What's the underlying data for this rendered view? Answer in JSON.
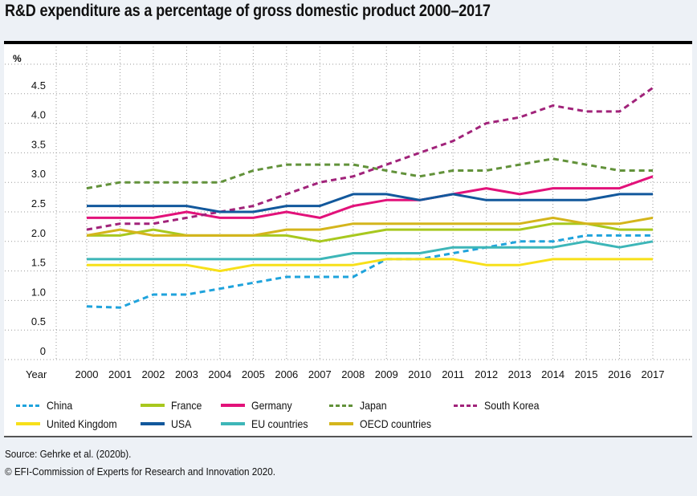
{
  "title": "R&D expenditure as a percentage of gross domestic product 2000–2017",
  "chart_data": {
    "type": "line",
    "title": "R&D expenditure as a percentage of gross domestic product 2000–2017",
    "ylabel": "%",
    "xlabel": "Year",
    "ylim": [
      0,
      5.0
    ],
    "yticks": [
      "0",
      "0.5",
      "1.0",
      "1.5",
      "2.0",
      "2.5",
      "3.0",
      "3.5",
      "4.0",
      "4.5"
    ],
    "grid": true,
    "legend_position": "bottom",
    "x": [
      "2000",
      "2001",
      "2002",
      "2003",
      "2004",
      "2005",
      "2006",
      "2007",
      "2008",
      "2009",
      "2010",
      "2011",
      "2012",
      "2013",
      "2014",
      "2015",
      "2016",
      "2017"
    ],
    "series": [
      {
        "name": "China",
        "color": "#1fa3dc",
        "dashed": true,
        "values": [
          0.9,
          0.88,
          1.1,
          1.1,
          1.2,
          1.3,
          1.4,
          1.4,
          1.4,
          1.7,
          1.7,
          1.8,
          1.9,
          2.0,
          2.0,
          2.1,
          2.1,
          2.1
        ]
      },
      {
        "name": "France",
        "color": "#a8c81e",
        "dashed": false,
        "values": [
          2.1,
          2.1,
          2.2,
          2.1,
          2.1,
          2.1,
          2.1,
          2.0,
          2.1,
          2.2,
          2.2,
          2.2,
          2.2,
          2.2,
          2.3,
          2.3,
          2.2,
          2.2
        ]
      },
      {
        "name": "Germany",
        "color": "#e2127a",
        "dashed": false,
        "values": [
          2.4,
          2.4,
          2.4,
          2.5,
          2.4,
          2.4,
          2.5,
          2.4,
          2.6,
          2.7,
          2.7,
          2.8,
          2.9,
          2.8,
          2.9,
          2.9,
          2.9,
          3.1
        ]
      },
      {
        "name": "Japan",
        "color": "#62923a",
        "dashed": true,
        "values": [
          2.9,
          3.0,
          3.0,
          3.0,
          3.0,
          3.2,
          3.3,
          3.3,
          3.3,
          3.2,
          3.1,
          3.2,
          3.2,
          3.3,
          3.4,
          3.3,
          3.2,
          3.2
        ]
      },
      {
        "name": "South Korea",
        "color": "#a1237a",
        "dashed": true,
        "values": [
          2.2,
          2.3,
          2.3,
          2.4,
          2.5,
          2.6,
          2.8,
          3.0,
          3.1,
          3.3,
          3.5,
          3.7,
          4.0,
          4.1,
          4.3,
          4.2,
          4.2,
          4.6
        ]
      },
      {
        "name": "United Kingdom",
        "color": "#f7e01a",
        "dashed": false,
        "values": [
          1.6,
          1.6,
          1.6,
          1.6,
          1.5,
          1.6,
          1.6,
          1.6,
          1.6,
          1.7,
          1.7,
          1.7,
          1.6,
          1.6,
          1.7,
          1.7,
          1.7,
          1.7
        ]
      },
      {
        "name": "USA",
        "color": "#12589c",
        "dashed": false,
        "values": [
          2.6,
          2.6,
          2.6,
          2.6,
          2.5,
          2.5,
          2.6,
          2.6,
          2.8,
          2.8,
          2.7,
          2.8,
          2.7,
          2.7,
          2.7,
          2.7,
          2.8,
          2.8
        ]
      },
      {
        "name": "EU countries",
        "color": "#3db6b8",
        "dashed": false,
        "values": [
          1.7,
          1.7,
          1.7,
          1.7,
          1.7,
          1.7,
          1.7,
          1.7,
          1.8,
          1.8,
          1.8,
          1.9,
          1.9,
          1.9,
          1.9,
          2.0,
          1.9,
          2.0
        ]
      },
      {
        "name": "OECD countries",
        "color": "#d4b51c",
        "dashed": false,
        "values": [
          2.1,
          2.2,
          2.1,
          2.1,
          2.1,
          2.1,
          2.2,
          2.2,
          2.3,
          2.3,
          2.3,
          2.3,
          2.3,
          2.3,
          2.4,
          2.3,
          2.3,
          2.4
        ]
      }
    ]
  },
  "footer": {
    "source": "Source: Gehrke et al. (2020b).",
    "copyright": "© EFI-Commission of Experts for Research and Innovation 2020."
  }
}
